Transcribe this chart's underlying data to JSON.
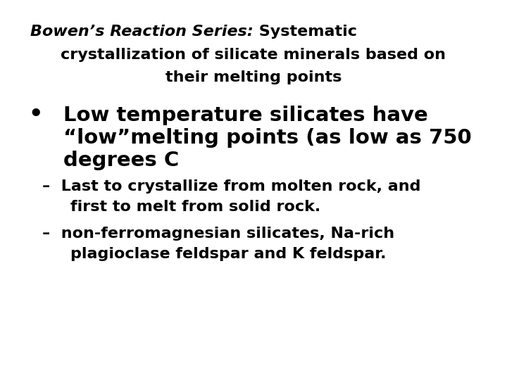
{
  "background_color": "#ffffff",
  "text_color": "#000000",
  "title_line1_italic": "Bowen’s Reaction Series:",
  "title_line1_bold": " Systematic",
  "title_line2": "crystallization of silicate minerals based on",
  "title_line3": "their melting points",
  "bullet_char": "•",
  "bullet_line1": "Low temperature silicates have",
  "bullet_line2": "“low”melting points (as low as 750",
  "bullet_line3": "degrees C",
  "sub1_line1": "–  Last to crystallize from molten rock, and",
  "sub1_line2": "   first to melt from solid rock.",
  "sub2_line1": "–  non-ferromagnesian silicates, Na-rich",
  "sub2_line2": "   plagioclase feldspar and K feldspar.",
  "title_fontsize": 16,
  "bullet_fontsize": 21,
  "sub_fontsize": 16
}
